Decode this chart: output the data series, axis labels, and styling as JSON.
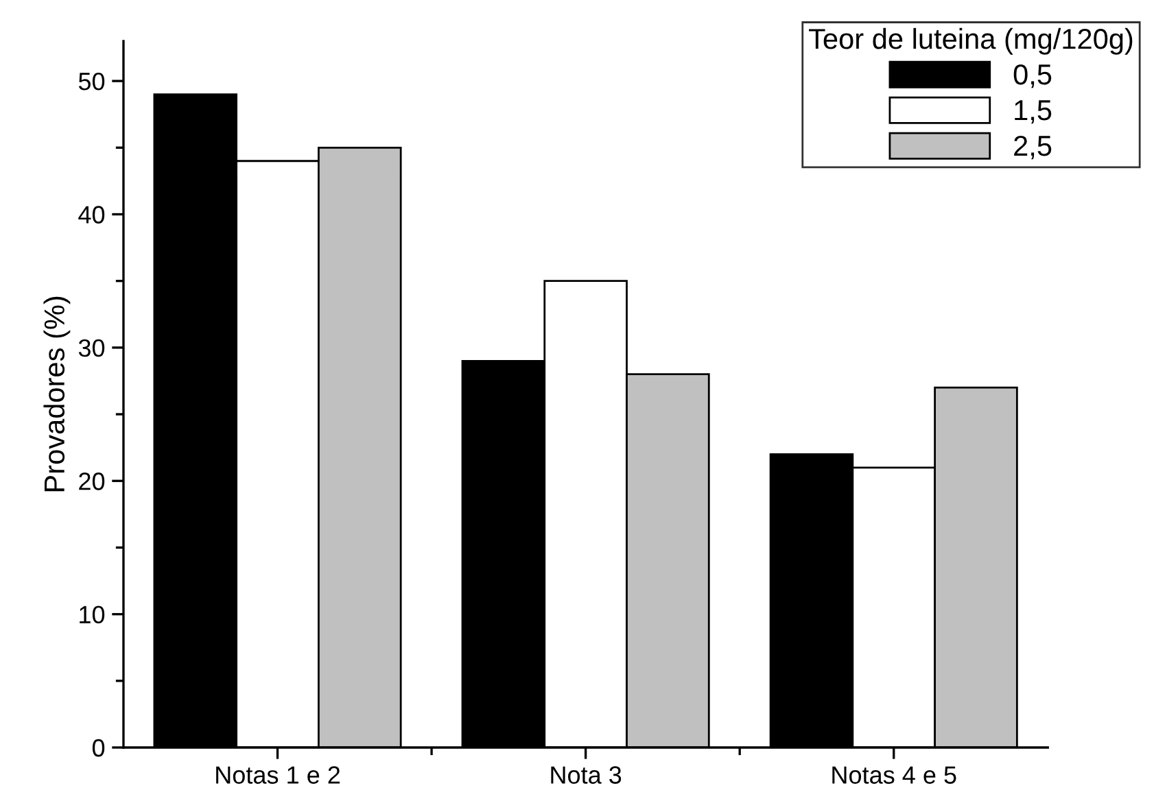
{
  "chart_data": {
    "type": "bar",
    "ylabel": "Provadores (%)",
    "legend_title": "Teor de luteina (mg/120g)",
    "categories": [
      "Notas 1 e 2",
      "Nota 3",
      "Notas 4 e 5"
    ],
    "series": [
      {
        "name": "0,5",
        "color": "#000000",
        "values": [
          49,
          29,
          22
        ]
      },
      {
        "name": "1,5",
        "color": "#ffffff",
        "values": [
          44,
          35,
          21
        ]
      },
      {
        "name": "2,5",
        "color": "#c0c0c0",
        "values": [
          45,
          28,
          27
        ]
      }
    ],
    "ylim": [
      0,
      53
    ],
    "yticks": [
      0,
      10,
      20,
      30,
      40,
      50
    ],
    "grid": false,
    "legend": "top right"
  }
}
